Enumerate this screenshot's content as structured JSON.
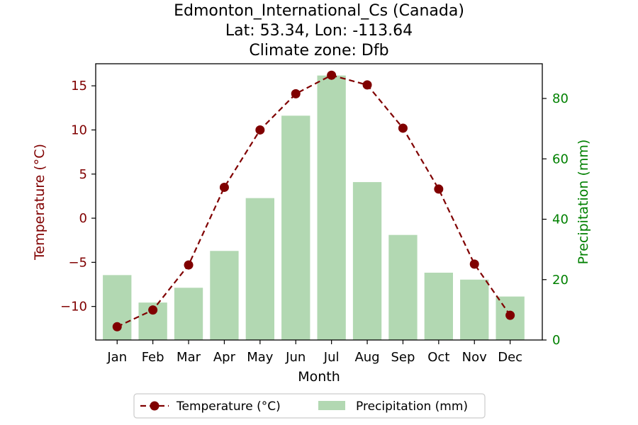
{
  "chart_data": {
    "type": "bar+line",
    "title_lines": [
      "Edmonton_International_Cs (Canada)",
      "Lat: 53.34, Lon: -113.64",
      "Climate zone: Dfb"
    ],
    "xlabel": "Month",
    "ylabel_left": "Temperature (°C)",
    "ylabel_right": "Precipitation (mm)",
    "categories": [
      "Jan",
      "Feb",
      "Mar",
      "Apr",
      "May",
      "Jun",
      "Jul",
      "Aug",
      "Sep",
      "Oct",
      "Nov",
      "Dec"
    ],
    "temperature": {
      "name": "Temperature (°C)",
      "values": [
        -12.3,
        -10.4,
        -5.3,
        3.5,
        10.0,
        14.1,
        16.2,
        15.1,
        10.2,
        3.3,
        -5.2,
        -11.0
      ],
      "ylim": [
        -13.8,
        17.5
      ],
      "ticks": [
        -10,
        -5,
        0,
        5,
        10,
        15
      ],
      "color": "#800000"
    },
    "precipitation": {
      "name": "Precipitation (mm)",
      "values": [
        21.5,
        12.4,
        17.3,
        29.5,
        47.0,
        74.3,
        87.6,
        52.3,
        34.8,
        22.3,
        20.0,
        14.4
      ],
      "ylim": [
        0,
        91.5
      ],
      "ticks": [
        0,
        20,
        40,
        60,
        80
      ],
      "color": "#b2d8b2",
      "tick_color": "#008000"
    },
    "legend_position": "bottom-center"
  }
}
